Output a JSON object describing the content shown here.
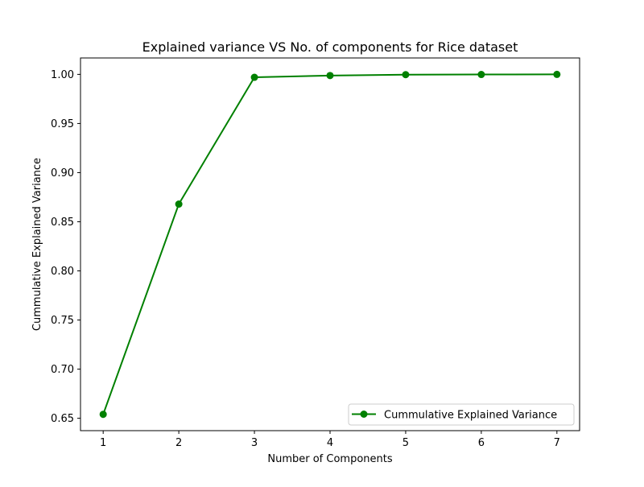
{
  "chart_data": {
    "type": "line",
    "title": "Explained variance VS No. of components for Rice dataset",
    "xlabel": "Number of Components",
    "ylabel": "Cummulative Explained Variance",
    "x": [
      1,
      2,
      3,
      4,
      5,
      6,
      7
    ],
    "series": [
      {
        "name": "Cummulative Explained Variance",
        "values": [
          0.654,
          0.868,
          0.997,
          0.9988,
          0.9997,
          0.9999,
          1.0
        ],
        "color": "#008000",
        "marker": "circle"
      }
    ],
    "xticks": [
      "1",
      "2",
      "3",
      "4",
      "5",
      "6",
      "7"
    ],
    "yticks": [
      "0.65",
      "0.70",
      "0.75",
      "0.80",
      "0.85",
      "0.90",
      "0.95",
      "1.00"
    ],
    "xlim": [
      0.7,
      7.3
    ],
    "ylim": [
      0.6374,
      1.0167
    ],
    "grid": false,
    "legend_position": "lower-right"
  }
}
